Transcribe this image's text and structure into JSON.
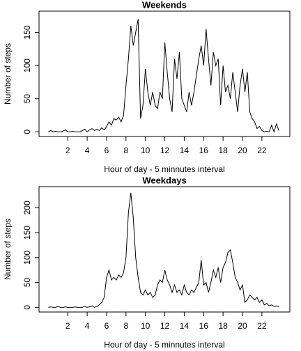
{
  "chart_data": [
    {
      "type": "line",
      "title": "Weekends",
      "x_label": "Hour of day - 5 minnutes interval",
      "y_label": "Number of steps",
      "color": "#000000",
      "x": [
        0,
        0.25,
        0.5,
        0.75,
        1,
        1.25,
        1.5,
        1.75,
        2,
        2.25,
        2.5,
        2.75,
        3,
        3.25,
        3.5,
        3.75,
        4,
        4.25,
        4.5,
        4.75,
        5,
        5.25,
        5.5,
        5.75,
        6,
        6.25,
        6.5,
        6.75,
        7,
        7.25,
        7.5,
        7.75,
        8,
        8.25,
        8.5,
        8.75,
        9,
        9.25,
        9.5,
        9.75,
        10,
        10.25,
        10.5,
        10.75,
        11,
        11.25,
        11.5,
        11.75,
        12,
        12.25,
        12.5,
        12.75,
        13,
        13.25,
        13.5,
        13.75,
        14,
        14.25,
        14.5,
        14.75,
        15,
        15.25,
        15.5,
        15.75,
        16,
        16.25,
        16.5,
        16.75,
        17,
        17.25,
        17.5,
        17.75,
        18,
        18.25,
        18.5,
        18.75,
        19,
        19.25,
        19.5,
        19.75,
        20,
        20.25,
        20.5,
        20.75,
        21,
        21.25,
        21.5,
        21.75,
        22,
        22.25,
        22.5,
        22.75,
        23,
        23.25,
        23.5,
        23.75
      ],
      "values": [
        0,
        2,
        0,
        1,
        0,
        0,
        1,
        3,
        0,
        0,
        1,
        0,
        0,
        0,
        2,
        4,
        0,
        3,
        5,
        2,
        4,
        2,
        6,
        3,
        8,
        15,
        10,
        20,
        18,
        22,
        15,
        25,
        70,
        110,
        160,
        130,
        150,
        170,
        20,
        40,
        95,
        60,
        40,
        60,
        40,
        35,
        60,
        50,
        135,
        90,
        50,
        30,
        110,
        80,
        120,
        50,
        40,
        30,
        60,
        40,
        60,
        85,
        110,
        130,
        100,
        155,
        110,
        70,
        120,
        100,
        110,
        40,
        100,
        60,
        70,
        50,
        90,
        60,
        30,
        70,
        95,
        60,
        90,
        30,
        20,
        15,
        5,
        8,
        2,
        0,
        1,
        0,
        10,
        0,
        12,
        2
      ],
      "xlim": [
        -0.96,
        24.88
      ],
      "ylim": [
        -7,
        182
      ],
      "xticks": [
        2,
        4,
        6,
        8,
        10,
        12,
        14,
        16,
        18,
        20,
        22
      ],
      "yticks": [
        0,
        50,
        100,
        150
      ]
    },
    {
      "type": "line",
      "title": "Weekdays",
      "x_label": "Hour of day - 5 minnutes interval",
      "y_label": "Number of steps",
      "color": "#000000",
      "x": [
        0,
        0.25,
        0.5,
        0.75,
        1,
        1.25,
        1.5,
        1.75,
        2,
        2.25,
        2.5,
        2.75,
        3,
        3.25,
        3.5,
        3.75,
        4,
        4.25,
        4.5,
        4.75,
        5,
        5.25,
        5.5,
        5.75,
        6,
        6.25,
        6.5,
        6.75,
        7,
        7.25,
        7.5,
        7.75,
        8,
        8.25,
        8.5,
        8.75,
        9,
        9.25,
        9.5,
        9.75,
        10,
        10.25,
        10.5,
        10.75,
        11,
        11.25,
        11.5,
        11.75,
        12,
        12.25,
        12.5,
        12.75,
        13,
        13.25,
        13.5,
        13.75,
        14,
        14.25,
        14.5,
        14.75,
        15,
        15.25,
        15.5,
        15.75,
        16,
        16.25,
        16.5,
        16.75,
        17,
        17.25,
        17.5,
        17.75,
        18,
        18.25,
        18.5,
        18.75,
        19,
        19.25,
        19.5,
        19.75,
        20,
        20.25,
        20.5,
        20.75,
        21,
        21.25,
        21.5,
        21.75,
        22,
        22.25,
        22.5,
        22.75,
        23,
        23.25,
        23.5,
        23.75
      ],
      "values": [
        0,
        1,
        0,
        0,
        2,
        0,
        0,
        1,
        0,
        0,
        0,
        1,
        0,
        0,
        0,
        2,
        0,
        1,
        3,
        0,
        2,
        5,
        10,
        20,
        60,
        75,
        55,
        60,
        55,
        65,
        60,
        70,
        100,
        190,
        230,
        180,
        100,
        60,
        30,
        25,
        35,
        25,
        30,
        20,
        25,
        45,
        55,
        50,
        75,
        55,
        45,
        30,
        45,
        30,
        35,
        25,
        45,
        30,
        25,
        35,
        30,
        40,
        50,
        95,
        45,
        50,
        30,
        50,
        75,
        60,
        80,
        50,
        80,
        90,
        110,
        115,
        90,
        60,
        50,
        35,
        45,
        10,
        15,
        25,
        20,
        15,
        20,
        10,
        15,
        5,
        8,
        3,
        5,
        2,
        3,
        1
      ],
      "xlim": [
        -0.96,
        24.88
      ],
      "ylim": [
        -9.3,
        242.3
      ],
      "xticks": [
        2,
        4,
        6,
        8,
        10,
        12,
        14,
        16,
        18,
        20,
        22
      ],
      "yticks": [
        0,
        50,
        100,
        150,
        200
      ]
    }
  ]
}
